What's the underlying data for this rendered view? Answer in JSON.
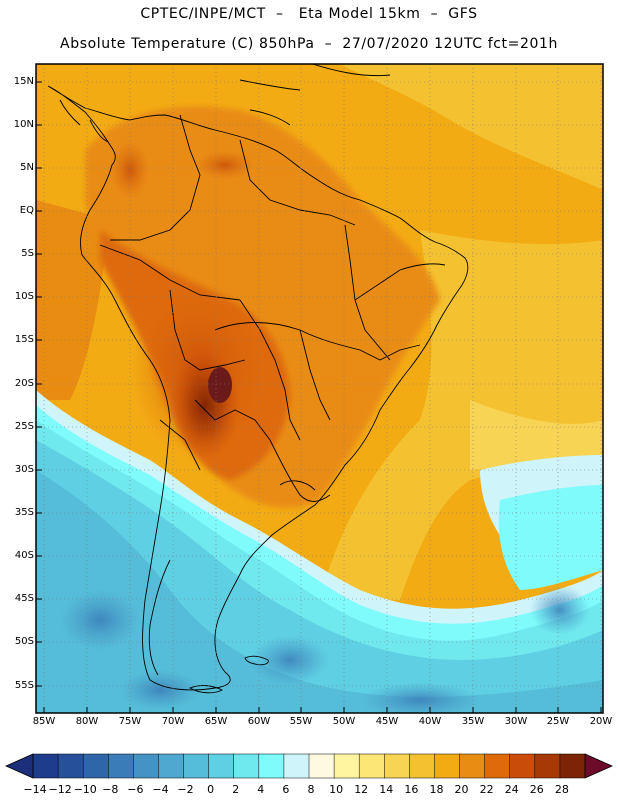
{
  "header": {
    "line1": "CPTEC/INPE/MCT  –   Eta Model 15km  –  GFS",
    "line2": "Absolute Temperature (C) 850hPa  –  27/07/2020 12UTC fct=201h"
  },
  "map": {
    "lat_labels": [
      "15N",
      "10N",
      "5N",
      "EQ",
      "5S",
      "10S",
      "15S",
      "20S",
      "25S",
      "30S",
      "35S",
      "40S",
      "45S",
      "50S",
      "55S"
    ],
    "lon_labels": [
      "85W",
      "80W",
      "75W",
      "70W",
      "65W",
      "60W",
      "55W",
      "50W",
      "45W",
      "40W",
      "35W",
      "30W",
      "25W",
      "20W"
    ],
    "variable": "Absolute Temperature (C) 850hPa",
    "hottest_region": "Bolivia / Paraguay / N. Argentina (~28)",
    "coldest_region": "Southern Patagonia & South Atlantic (~ -4 to -8)"
  },
  "colorbar": {
    "labels": [
      "-14",
      "-12",
      "-10",
      "-8",
      "-6",
      "-4",
      "-2",
      "0",
      "2",
      "4",
      "6",
      "8",
      "10",
      "12",
      "14",
      "16",
      "18",
      "20",
      "22",
      "24",
      "26",
      "28"
    ],
    "colors": [
      "#1e3c8c",
      "#27509b",
      "#2f66aa",
      "#3a7cb8",
      "#4592c4",
      "#4fa8cf",
      "#55bdd8",
      "#5fd0e3",
      "#6fe8ee",
      "#7ffbfb",
      "#cff5fb",
      "#fff9e0",
      "#fff5a0",
      "#fbe676",
      "#f7d454",
      "#f4c230",
      "#f3ab14",
      "#e98c12",
      "#de6a0a",
      "#c94d08",
      "#a73906",
      "#7d2306"
    ],
    "low_arrow_color": "#1b2f7a",
    "high_arrow_color": "#6e0a2a"
  }
}
